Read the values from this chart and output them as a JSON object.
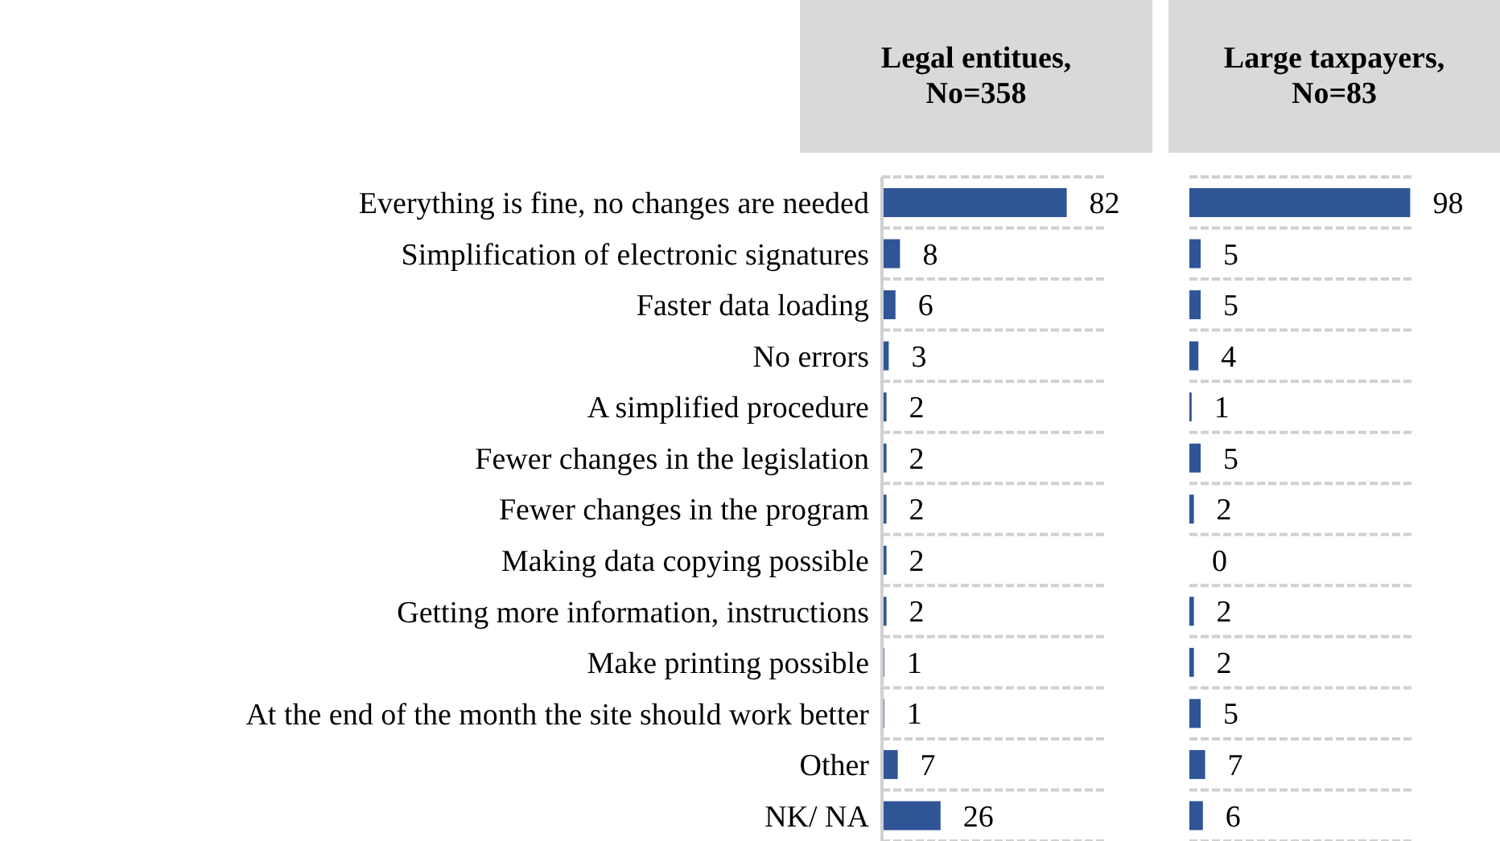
{
  "chart_data": [
    {
      "type": "bar",
      "orientation": "horizontal",
      "title": "Legal entitues, No=358",
      "categories": [
        "Everything is fine, no changes are needed",
        "Simplification of electronic signatures",
        "Faster data loading",
        "No errors",
        "A simplified procedure",
        "Fewer changes in the legislation",
        "Fewer changes in the program",
        "Making data copying possible",
        "Getting more information, instructions",
        "Make printing possible",
        "At the end of the month the site should work better",
        "Other",
        "NK/ NA"
      ],
      "values": [
        82,
        8,
        6,
        3,
        2,
        2,
        2,
        2,
        2,
        1,
        1,
        7,
        26
      ],
      "color": "#2f5597",
      "xlim": [
        0,
        100
      ],
      "data_labels": true,
      "grid": "y",
      "legend": false,
      "tick_labels": "y"
    },
    {
      "type": "bar",
      "orientation": "horizontal",
      "title": "Large taxpayers, No=83",
      "categories": [
        null,
        null,
        null,
        null,
        null,
        null,
        null,
        null,
        null,
        null,
        null,
        null,
        null
      ],
      "values": [
        98,
        5,
        5,
        4,
        1,
        5,
        2,
        0,
        2,
        2,
        5,
        7,
        6
      ],
      "color": "#2f5597",
      "xlim": [
        0,
        100
      ],
      "data_labels": true,
      "grid": "y",
      "legend": false,
      "tick_labels": false
    }
  ]
}
